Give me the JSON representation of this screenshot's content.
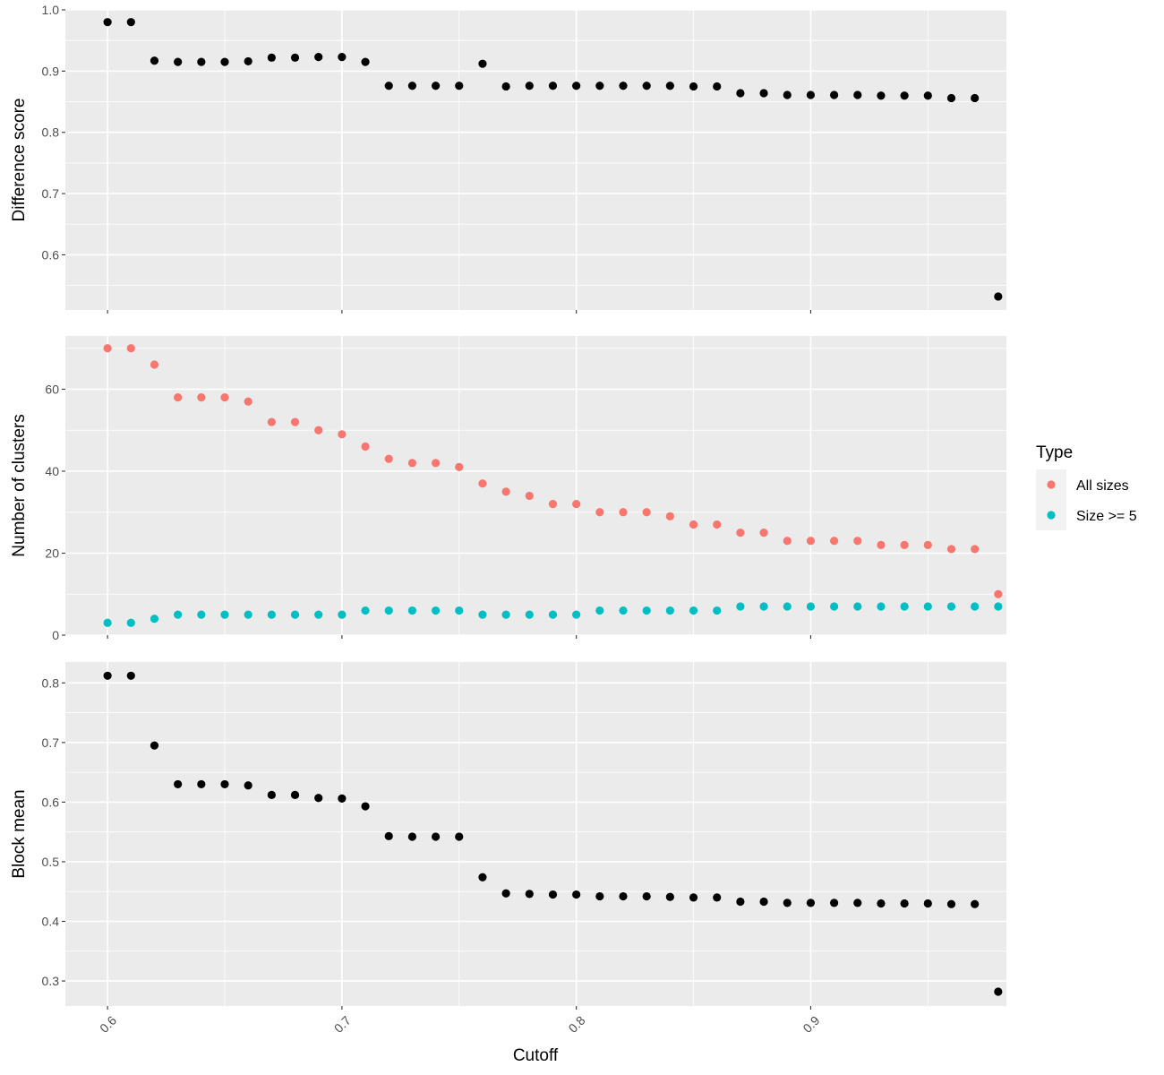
{
  "chart_data": {
    "type": "scatter",
    "xlabel": "Cutoff",
    "x_ticks": [
      0.6,
      0.7,
      0.8,
      0.9
    ],
    "x_tick_labels": [
      "0.6",
      "0.7",
      "0.8",
      "0.9"
    ],
    "xlim": [
      0.582,
      0.9835
    ],
    "x": [
      0.6,
      0.61,
      0.62,
      0.63,
      0.64,
      0.65,
      0.66,
      0.67,
      0.68,
      0.69,
      0.7,
      0.71,
      0.72,
      0.73,
      0.74,
      0.75,
      0.76,
      0.77,
      0.78,
      0.79,
      0.8,
      0.81,
      0.82,
      0.83,
      0.84,
      0.85,
      0.86,
      0.87,
      0.88,
      0.89,
      0.9,
      0.91,
      0.92,
      0.93,
      0.94,
      0.95,
      0.96,
      0.97,
      0.98
    ],
    "facets": [
      {
        "ylabel": "Difference score",
        "ylim": [
          0.51,
          1.0
        ],
        "y_ticks": [
          0.6,
          0.7,
          0.8,
          0.9,
          1.0
        ],
        "y_tick_labels": [
          "0.6",
          "0.7",
          "0.8",
          "0.9",
          "1.0"
        ],
        "series": [
          {
            "color": "#000000",
            "values": [
              0.98,
              0.98,
              0.917,
              0.915,
              0.915,
              0.915,
              0.916,
              0.922,
              0.922,
              0.923,
              0.923,
              0.915,
              0.876,
              0.876,
              0.876,
              0.876,
              0.912,
              0.875,
              0.876,
              0.876,
              0.876,
              0.876,
              0.876,
              0.876,
              0.876,
              0.875,
              0.875,
              0.864,
              0.864,
              0.861,
              0.861,
              0.861,
              0.861,
              0.86,
              0.86,
              0.86,
              0.856,
              0.856,
              0.532
            ]
          }
        ]
      },
      {
        "ylabel": "Number of clusters",
        "ylim": [
          0,
          73
        ],
        "y_ticks": [
          0,
          20,
          40,
          60
        ],
        "y_tick_labels": [
          "0",
          "20",
          "40",
          "60"
        ],
        "series": [
          {
            "name": "All sizes",
            "color": "#F8766D",
            "values": [
              70,
              70,
              66,
              58,
              58,
              58,
              57,
              52,
              52,
              50,
              49,
              46,
              43,
              42,
              42,
              41,
              37,
              35,
              34,
              32,
              32,
              30,
              30,
              30,
              29,
              27,
              27,
              25,
              25,
              23,
              23,
              23,
              23,
              22,
              22,
              22,
              21,
              21,
              10
            ]
          },
          {
            "name": "Size >= 5",
            "color": "#00BFC4",
            "values": [
              3,
              3,
              4,
              5,
              5,
              5,
              5,
              5,
              5,
              5,
              5,
              6,
              6,
              6,
              6,
              6,
              5,
              5,
              5,
              5,
              5,
              6,
              6,
              6,
              6,
              6,
              6,
              7,
              7,
              7,
              7,
              7,
              7,
              7,
              7,
              7,
              7,
              7,
              7
            ]
          }
        ]
      },
      {
        "ylabel": "Block mean",
        "ylim": [
          0.258,
          0.835
        ],
        "y_ticks": [
          0.3,
          0.4,
          0.5,
          0.6,
          0.7,
          0.8
        ],
        "y_tick_labels": [
          "0.3",
          "0.4",
          "0.5",
          "0.6",
          "0.7",
          "0.8"
        ],
        "series": [
          {
            "color": "#000000",
            "values": [
              0.812,
              0.812,
              0.695,
              0.63,
              0.63,
              0.63,
              0.628,
              0.612,
              0.612,
              0.607,
              0.606,
              0.593,
              0.543,
              0.542,
              0.542,
              0.542,
              0.474,
              0.447,
              0.446,
              0.445,
              0.445,
              0.442,
              0.442,
              0.442,
              0.441,
              0.44,
              0.44,
              0.433,
              0.433,
              0.431,
              0.431,
              0.431,
              0.431,
              0.43,
              0.43,
              0.43,
              0.429,
              0.429,
              0.282
            ]
          }
        ]
      }
    ],
    "legend": {
      "title": "Type",
      "position": "right",
      "entries": [
        {
          "label": "All sizes",
          "color": "#F8766D"
        },
        {
          "label": "Size >= 5",
          "color": "#00BFC4"
        }
      ]
    },
    "panel_background": "#EBEBEB",
    "grid": true
  }
}
